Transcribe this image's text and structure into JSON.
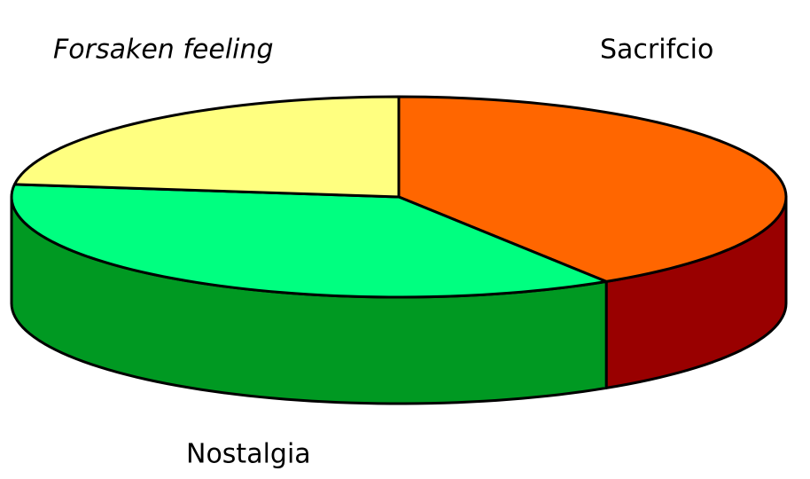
{
  "chart_data": {
    "type": "pie",
    "categories": [
      "Sacrifcio",
      "Nostalgia",
      "Forsaken feeling"
    ],
    "values": [
      41,
      36,
      23
    ],
    "colors": [
      "#ff6600",
      "#00ff80",
      "#ffff80"
    ],
    "side_colors": [
      "#990000",
      "#009922",
      "#999944"
    ]
  }
}
